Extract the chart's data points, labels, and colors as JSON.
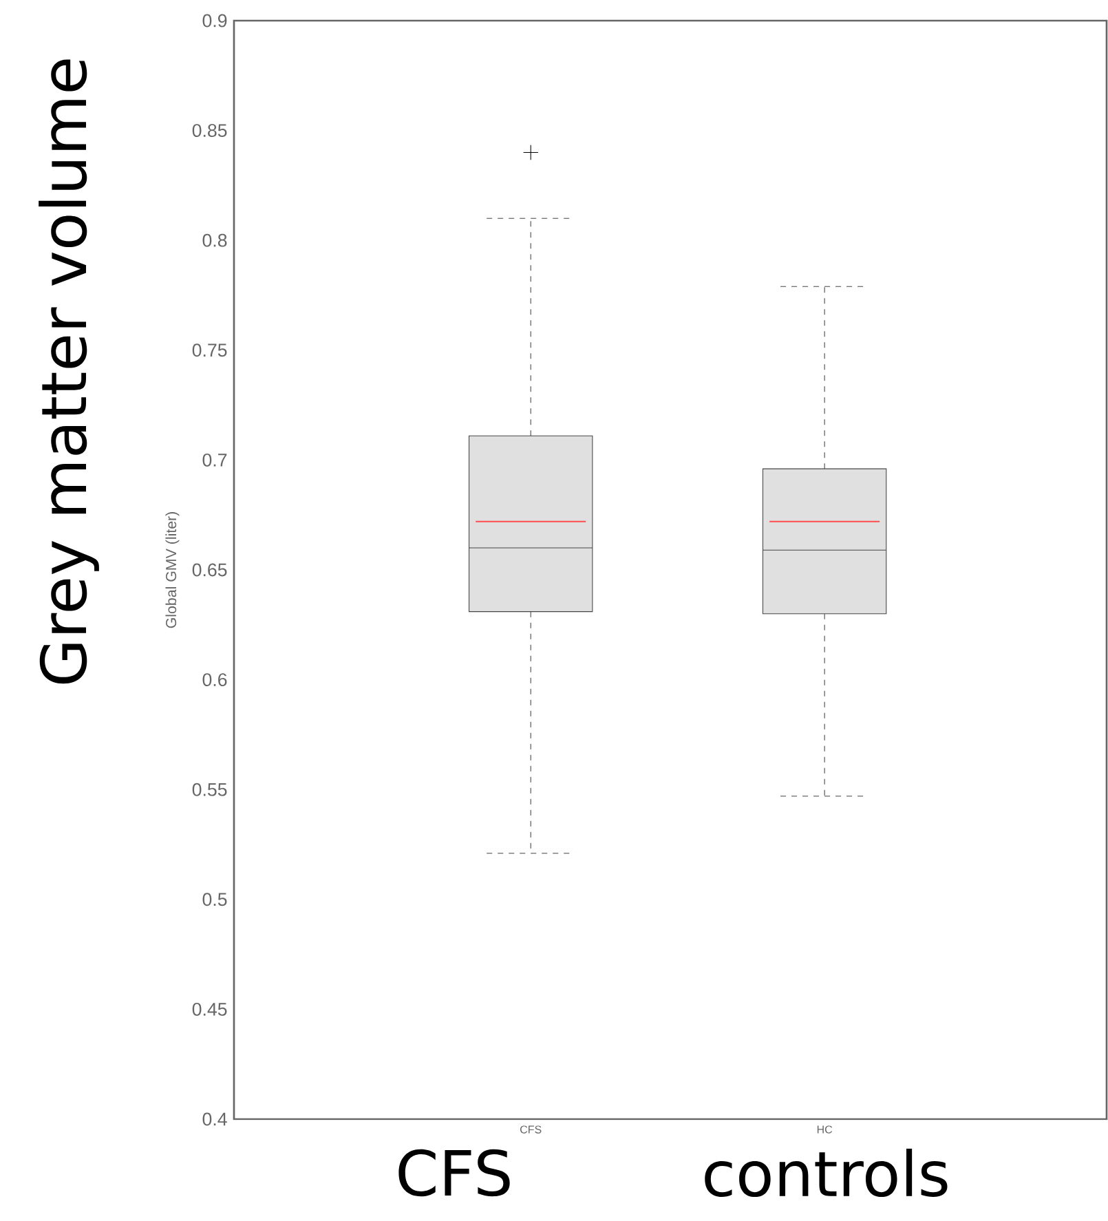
{
  "chart_data": {
    "type": "box",
    "ylabel": "Global GMV (liter)",
    "categories": [
      "CFS",
      "HC"
    ],
    "boxes": [
      {
        "low": 0.521,
        "q1": 0.631,
        "median": 0.66,
        "q3": 0.711,
        "high": 0.81,
        "mean": 0.672,
        "outliers": [
          0.84
        ]
      },
      {
        "low": 0.547,
        "q1": 0.63,
        "median": 0.659,
        "q3": 0.696,
        "high": 0.779,
        "mean": 0.672
      }
    ],
    "color": "#444444",
    "ylim": [
      0.4,
      0.9
    ],
    "yticks": [
      0.4,
      0.45,
      0.5,
      0.55,
      0.6,
      0.65,
      0.7,
      0.75,
      0.8,
      0.85,
      0.9
    ],
    "annotations": [
      "Grey matter volume",
      "CFS",
      "controls"
    ]
  }
}
